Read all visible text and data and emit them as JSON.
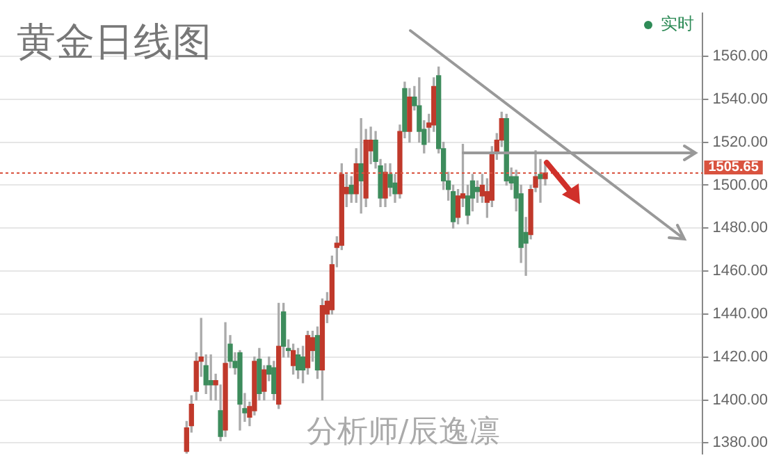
{
  "chart_data": {
    "type": "candlestick",
    "title": "黄金日线图",
    "annotations": [
      "实时",
      "分析师/辰逸凛"
    ],
    "categories": [
      null,
      null,
      null,
      null,
      null,
      null,
      null,
      null,
      null,
      null,
      null,
      null,
      null,
      null,
      null,
      null,
      null,
      null,
      null,
      null,
      null,
      null,
      null,
      null,
      null,
      null,
      null,
      null,
      null,
      null,
      null,
      null,
      null,
      null,
      null,
      null,
      null,
      null,
      null,
      null,
      null,
      null,
      null,
      null,
      null,
      null,
      null,
      null,
      null,
      null,
      null,
      null,
      null,
      null,
      null,
      null,
      null,
      null,
      null,
      null,
      null,
      null,
      null,
      null,
      null,
      null,
      null,
      null,
      null,
      null,
      null,
      null,
      null,
      null,
      null,
      null,
      null,
      null,
      null,
      null,
      null,
      null,
      null,
      null,
      null,
      null,
      null,
      null,
      null,
      null,
      null,
      null,
      null,
      null,
      null,
      null,
      null,
      null,
      null,
      null,
      null,
      null,
      null,
      null,
      null,
      null,
      null,
      null,
      null,
      null,
      null,
      null,
      null,
      null,
      null,
      null,
      null,
      null,
      null,
      null,
      null,
      null,
      null,
      null,
      null,
      null,
      null,
      null,
      null,
      null,
      null,
      null,
      null,
      null,
      null,
      null,
      null,
      null,
      null,
      null,
      null,
      null,
      null,
      null,
      null
    ],
    "ohlc": [
      null,
      null,
      null,
      null,
      null,
      null,
      null,
      null,
      null,
      null,
      null,
      null,
      null,
      null,
      null,
      null,
      null,
      null,
      null,
      null,
      null,
      null,
      null,
      null,
      null,
      null,
      null,
      null,
      null,
      null,
      null,
      null,
      null,
      null,
      null,
      null,
      null,
      null,
      [
        1376,
        1390,
        1375,
        1387
      ],
      [
        1388,
        1402,
        1385,
        1398
      ],
      [
        1404,
        1422,
        1400,
        1418
      ],
      [
        1418,
        1438,
        1411,
        1420
      ],
      [
        1416,
        1421,
        1403,
        1407
      ],
      [
        1409,
        1421,
        1400,
        1407
      ],
      [
        1407,
        1412,
        1400,
        1409
      ],
      [
        1395,
        1407,
        1381,
        1383
      ],
      [
        1386,
        1436,
        1383,
        1417
      ],
      [
        1426,
        1430,
        1415,
        1418
      ],
      [
        1418,
        1422,
        1412,
        1415
      ],
      [
        1422,
        1423,
        1386,
        1398
      ],
      [
        1396,
        1403,
        1390,
        1394
      ],
      [
        1392,
        1399,
        1388,
        1397
      ],
      [
        1395,
        1420,
        1393,
        1418
      ],
      [
        1419,
        1424,
        1400,
        1403
      ],
      [
        1404,
        1416,
        1400,
        1414
      ],
      [
        1416,
        1420,
        1409,
        1412
      ],
      [
        1415,
        1418,
        1400,
        1403
      ],
      [
        1398,
        1445,
        1396,
        1425
      ],
      [
        1441,
        1445,
        1420,
        1425
      ],
      [
        1424,
        1428,
        1420,
        1423
      ],
      [
        1416,
        1426,
        1412,
        1423
      ],
      [
        1421,
        1424,
        1410,
        1414
      ],
      [
        1420,
        1425,
        1408,
        1414
      ],
      [
        1415,
        1432,
        1412,
        1430
      ],
      [
        1423,
        1432,
        1418,
        1429
      ],
      [
        1430,
        1434,
        1410,
        1414
      ],
      [
        1414,
        1447,
        1400,
        1444
      ],
      [
        1440,
        1450,
        1436,
        1446
      ],
      [
        1442,
        1467,
        1440,
        1463
      ],
      [
        1471,
        1476,
        1462,
        1473
      ],
      [
        1472,
        1510,
        1470,
        1505
      ],
      [
        1496,
        1505,
        1490,
        1499
      ],
      [
        1500,
        1504,
        1492,
        1496
      ],
      [
        1496,
        1517,
        1492,
        1510
      ],
      [
        1510,
        1531,
        1487,
        1502
      ],
      [
        1494,
        1526,
        1490,
        1521
      ],
      [
        1516,
        1527,
        1510,
        1521
      ],
      [
        1521,
        1525,
        1508,
        1511
      ],
      [
        1509,
        1512,
        1490,
        1494
      ],
      [
        1494,
        1510,
        1490,
        1506
      ],
      [
        1505,
        1510,
        1495,
        1499
      ],
      [
        1501,
        1505,
        1492,
        1496
      ],
      [
        1496,
        1528,
        1494,
        1525
      ],
      [
        1545,
        1548,
        1522,
        1525
      ],
      [
        1525,
        1545,
        1520,
        1541
      ],
      [
        1541,
        1546,
        1535,
        1537
      ],
      [
        1537,
        1550,
        1520,
        1525
      ],
      [
        1526,
        1530,
        1515,
        1519
      ],
      [
        1527,
        1533,
        1520,
        1529
      ],
      [
        1528,
        1550,
        1525,
        1546
      ],
      [
        1551,
        1555,
        1515,
        1517
      ],
      [
        1517,
        1520,
        1498,
        1502
      ],
      [
        1502,
        1506,
        1493,
        1498
      ],
      [
        1497,
        1500,
        1480,
        1483
      ],
      [
        1485,
        1498,
        1482,
        1495
      ],
      [
        1494,
        1519,
        1490,
        1496
      ],
      [
        1495,
        1500,
        1482,
        1486
      ],
      [
        1502,
        1505,
        1488,
        1494
      ],
      [
        1499,
        1502,
        1492,
        1497
      ],
      [
        1495,
        1505,
        1492,
        1500
      ],
      [
        1492,
        1503,
        1485,
        1497
      ],
      [
        1493,
        1518,
        1490,
        1515
      ],
      [
        1515,
        1524,
        1512,
        1521
      ],
      [
        1521,
        1534,
        1518,
        1531
      ],
      [
        1531,
        1533,
        1500,
        1502
      ],
      [
        1504,
        1508,
        1498,
        1501
      ],
      [
        1504,
        1507,
        1488,
        1494
      ],
      [
        1496,
        1500,
        1464,
        1471
      ],
      [
        1478,
        1485,
        1458,
        1473
      ],
      [
        1477,
        1500,
        1475,
        1498
      ],
      [
        1499,
        1516,
        1497,
        1504
      ],
      [
        1505,
        1512,
        1492,
        1503
      ],
      [
        1503,
        1510,
        1500,
        1505.65
      ],
      null,
      null,
      null,
      null,
      null,
      null,
      null,
      null,
      null,
      null,
      null,
      null,
      null,
      null,
      null,
      null,
      null,
      null,
      null,
      null,
      null,
      null,
      null,
      null,
      null,
      null,
      null,
      null,
      null,
      null,
      null,
      null
    ],
    "ylim": [
      1375,
      1580
    ],
    "yticks": [
      {
        "value": 1380,
        "label": "1380.00"
      },
      {
        "value": 1400,
        "label": "1400.00"
      },
      {
        "value": 1420,
        "label": "1420.00"
      },
      {
        "value": 1440,
        "label": "1440.00"
      },
      {
        "value": 1460,
        "label": "1460.00"
      },
      {
        "value": 1480,
        "label": "1480.00"
      },
      {
        "value": 1500,
        "label": "1500.00"
      },
      {
        "value": 1520,
        "label": "1520.00"
      },
      {
        "value": 1540,
        "label": "1540.00"
      },
      {
        "value": 1560,
        "label": "1560.00"
      }
    ],
    "ref_lines": [
      {
        "axis": "y",
        "value": 1505.65,
        "label": "1505.65",
        "color": "#d9533f",
        "line_style": "dotted"
      }
    ],
    "grid": "y",
    "tick_labels": "y",
    "legend": false
  }
}
